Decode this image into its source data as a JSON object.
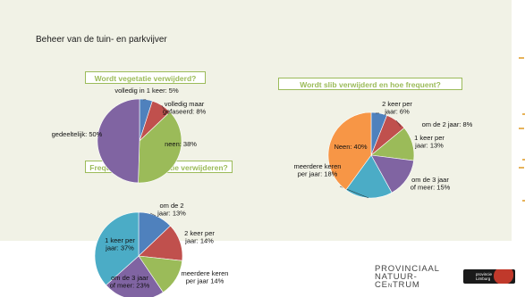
{
  "page_title": "Beheer van de tuin- en parkvijver",
  "chart_data": [
    {
      "type": "pie",
      "title": "Wordt vegetatie verwijderd?",
      "slices": [
        {
          "label": "volledig in 1 keer: 5%",
          "value": 5,
          "color": "#4f81bd"
        },
        {
          "label": "volledig maar gefaseerd: 8%",
          "value": 8,
          "color": "#c0504d"
        },
        {
          "label": "neen: 38%",
          "value": 38,
          "color": "#9bbb59"
        },
        {
          "label": "gedeeltelijk: 50%",
          "value": 50,
          "color": "#8064a2"
        }
      ]
    },
    {
      "type": "pie",
      "title": "Wordt slib verwijderd en hoe frequent?",
      "slices": [
        {
          "label": "2 keer per jaar: 6%",
          "value": 6,
          "color": "#4f81bd"
        },
        {
          "label": "om de 2 jaar: 8%",
          "value": 8,
          "color": "#c0504d"
        },
        {
          "label": "1 keer per jaar: 13%",
          "value": 13,
          "color": "#9bbb59"
        },
        {
          "label": "om de 3 jaar of meer: 15%",
          "value": 15,
          "color": "#8064a2"
        },
        {
          "label": "meerdere keren per jaar: 18%",
          "value": 18,
          "color": "#4bacc6"
        },
        {
          "label": "Neen: 40%",
          "value": 40,
          "color": "#f79646"
        }
      ]
    },
    {
      "type": "pie",
      "title": "Frequentie van vegetatie verwijderen?",
      "slices": [
        {
          "label": "om de 2 jaar: 13%",
          "value": 13,
          "color": "#4f81bd"
        },
        {
          "label": "2 keer per jaar: 14%",
          "value": 14,
          "color": "#c0504d"
        },
        {
          "label": "meerdere keren per jaar 14%",
          "value": 14,
          "color": "#9bbb59"
        },
        {
          "label": "om de 3 jaar of meer: 23%",
          "value": 23,
          "color": "#8064a2"
        },
        {
          "label": "1 keer per jaar: 37%",
          "value": 37,
          "color": "#4bacc6"
        }
      ]
    }
  ],
  "logo": {
    "line1": "PROVINCIAAL",
    "line2": "NATUUR-",
    "line3_a": "CE",
    "line3_small": "N",
    "line3_b": "TRUM",
    "badge_line1": "provincie",
    "badge_line2": "Limburg"
  }
}
